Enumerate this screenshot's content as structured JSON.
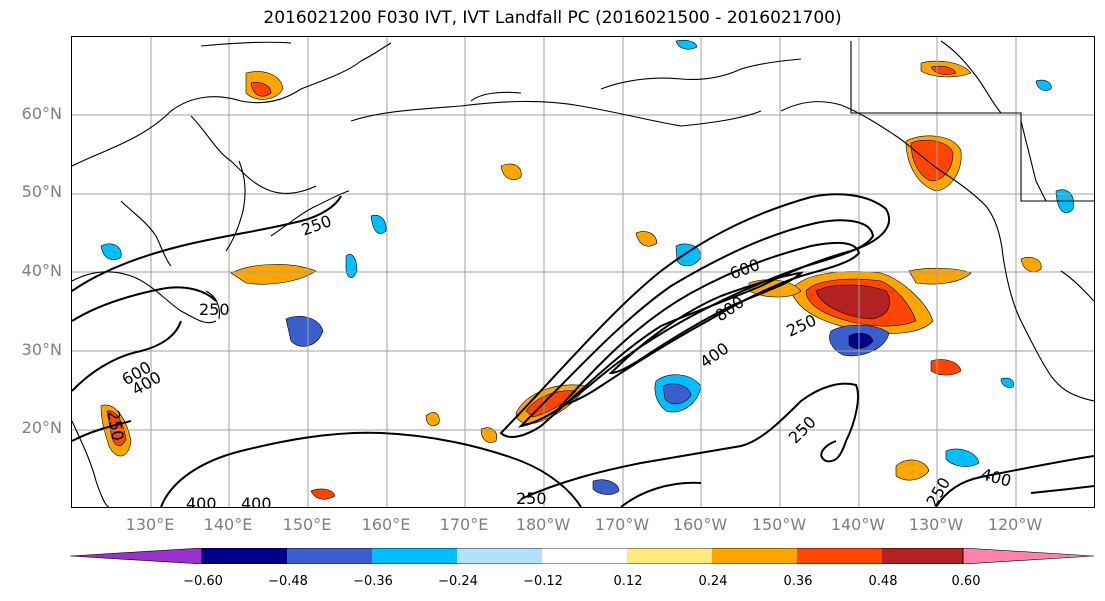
{
  "title": "2016021200 F030 IVT, IVT Landfall PC (2016021500 - 2016021700)",
  "lat_labels": [
    "60°N",
    "50°N",
    "40°N",
    "30°N",
    "20°N"
  ],
  "lon_labels": [
    "130°E",
    "140°E",
    "150°E",
    "160°E",
    "170°E",
    "180°W",
    "170°W",
    "160°W",
    "150°W",
    "140°W",
    "130°W",
    "120°W"
  ],
  "contour_labels": [
    {
      "text": "600"
    },
    {
      "text": "800"
    },
    {
      "text": "250"
    },
    {
      "text": "400"
    },
    {
      "text": "250"
    },
    {
      "text": "250"
    },
    {
      "text": "250"
    },
    {
      "text": "600"
    },
    {
      "text": "400"
    },
    {
      "text": "250"
    },
    {
      "text": "400"
    },
    {
      "text": "400"
    },
    {
      "text": "250"
    },
    {
      "text": "250"
    },
    {
      "text": "400"
    },
    {
      "text": "250"
    },
    {
      "text": "250"
    }
  ],
  "colorbar": {
    "ticks": [
      "−0.60",
      "−0.48",
      "−0.36",
      "−0.24",
      "−0.12",
      "0.12",
      "0.24",
      "0.36",
      "0.48",
      "0.60"
    ],
    "colors": [
      "#9932cc",
      "#00008b",
      "#3a5fcd",
      "#00bfff",
      "#b0e2ff",
      "#ffffff",
      "#ffe97f",
      "#ffa500",
      "#ff4500",
      "#b22222",
      "#ff82ab"
    ]
  }
}
